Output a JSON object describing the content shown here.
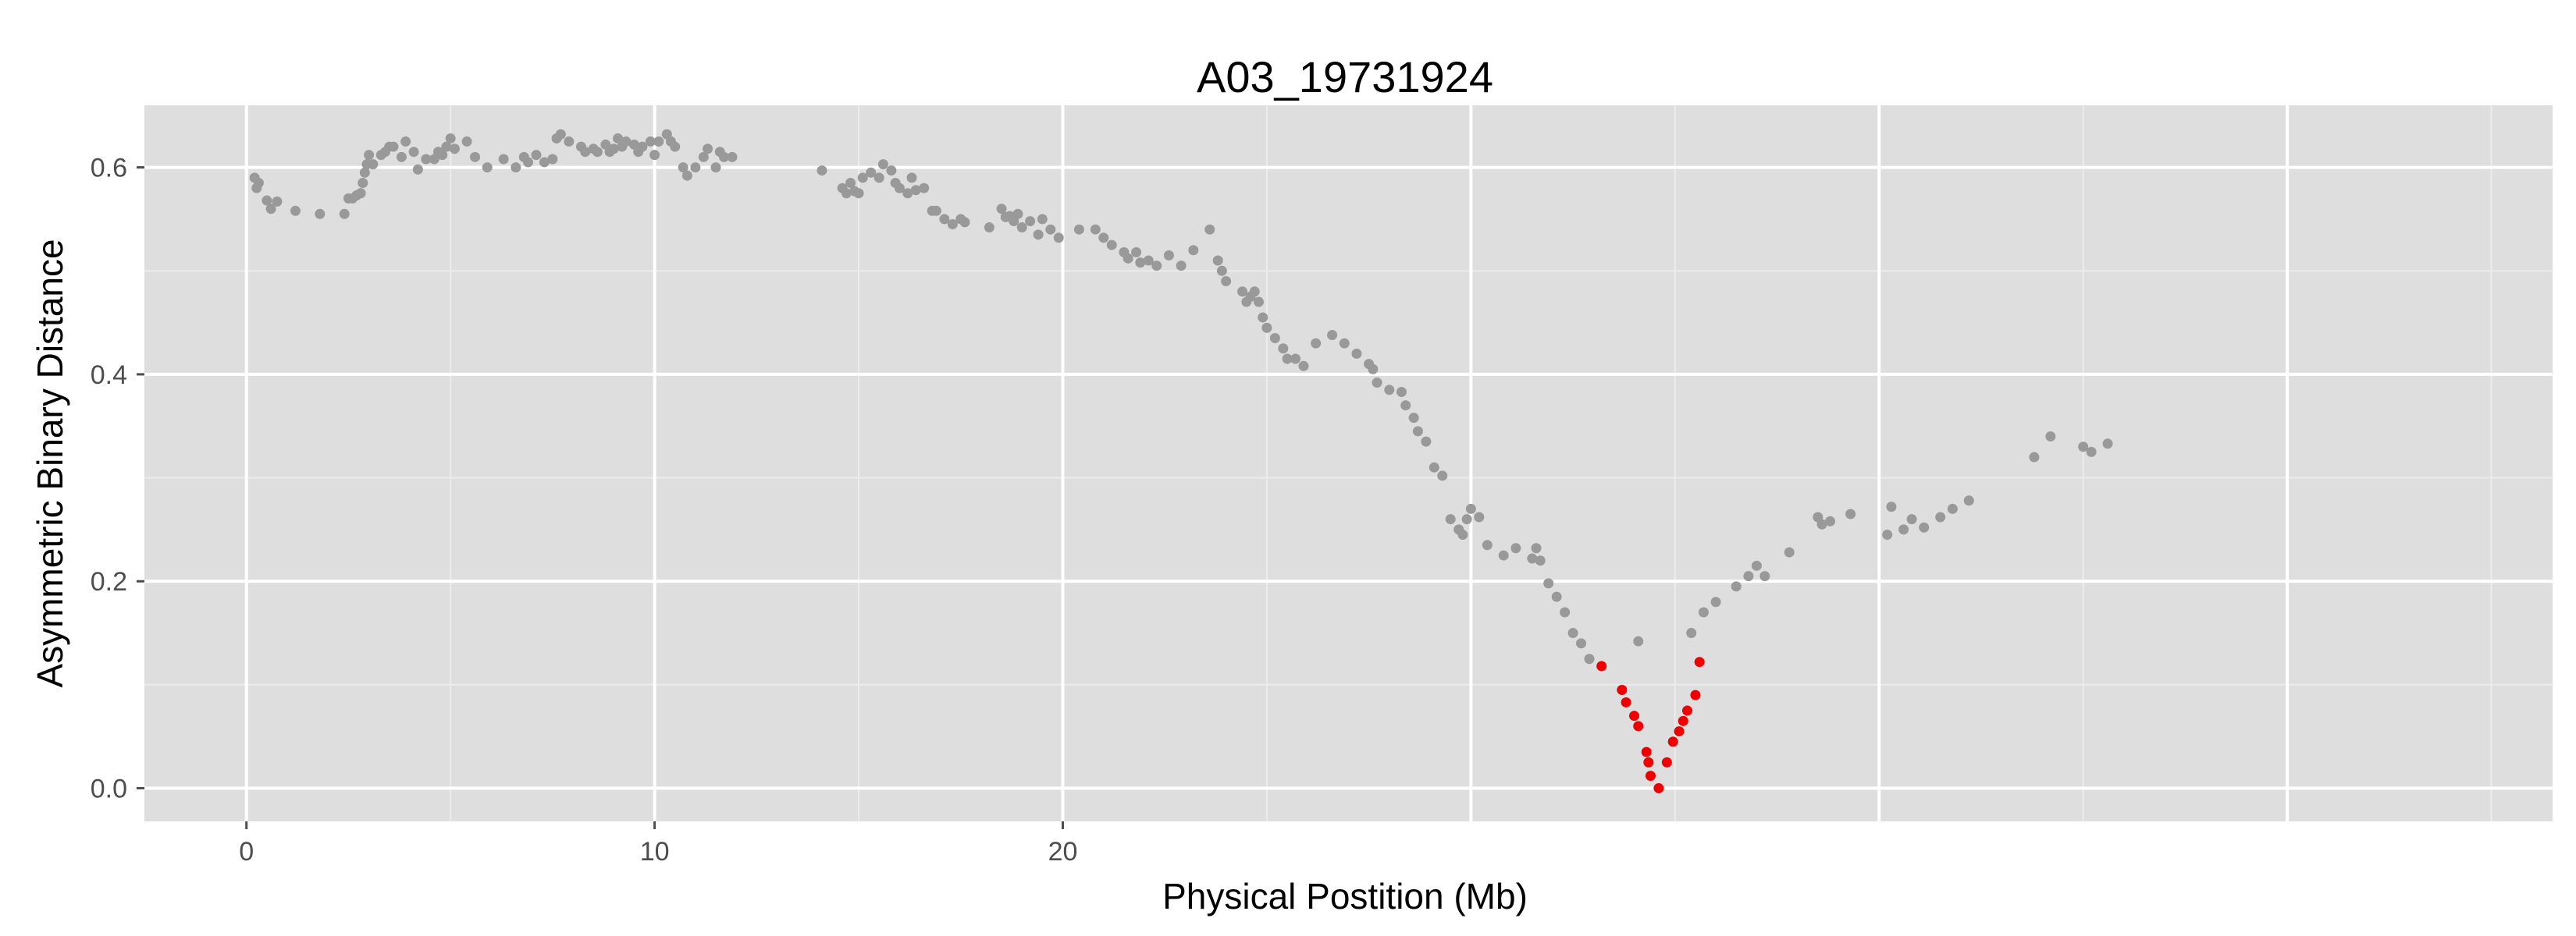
{
  "chart_data": {
    "type": "scatter",
    "title": "A03_19731924",
    "xlabel": "Physical Postition (Mb)",
    "ylabel": "Asymmetric Binary Distance",
    "xlim": [
      -2.5,
      56.5
    ],
    "ylim": [
      -0.032,
      0.66
    ],
    "x_ticks": [
      0,
      10,
      20
    ],
    "y_ticks": [
      0.0,
      0.2,
      0.4,
      0.6
    ],
    "y_tick_labels": [
      "0.0",
      "0.2",
      "0.4",
      "0.6"
    ],
    "grid": true,
    "colors": {
      "panel": "#dedede",
      "grid_major": "#ffffff",
      "grid_minor": "#ececec",
      "default_point": "#999999",
      "highlight_point": "#ee0000"
    },
    "series": [
      {
        "name": "markers",
        "color": "#999999",
        "points": [
          [
            0.2,
            0.59
          ],
          [
            0.25,
            0.58
          ],
          [
            0.3,
            0.585
          ],
          [
            0.5,
            0.568
          ],
          [
            0.6,
            0.56
          ],
          [
            0.75,
            0.567
          ],
          [
            1.2,
            0.558
          ],
          [
            1.8,
            0.555
          ],
          [
            2.4,
            0.555
          ],
          [
            2.5,
            0.57
          ],
          [
            2.6,
            0.57
          ],
          [
            2.7,
            0.573
          ],
          [
            2.8,
            0.575
          ],
          [
            2.85,
            0.585
          ],
          [
            2.9,
            0.595
          ],
          [
            2.95,
            0.603
          ],
          [
            3.0,
            0.612
          ],
          [
            3.1,
            0.603
          ],
          [
            3.3,
            0.612
          ],
          [
            3.4,
            0.615
          ],
          [
            3.5,
            0.62
          ],
          [
            3.6,
            0.62
          ],
          [
            3.8,
            0.61
          ],
          [
            3.9,
            0.625
          ],
          [
            4.1,
            0.615
          ],
          [
            4.2,
            0.598
          ],
          [
            4.4,
            0.608
          ],
          [
            4.6,
            0.608
          ],
          [
            4.7,
            0.615
          ],
          [
            4.8,
            0.612
          ],
          [
            4.9,
            0.62
          ],
          [
            5.0,
            0.628
          ],
          [
            5.1,
            0.618
          ],
          [
            5.4,
            0.625
          ],
          [
            5.6,
            0.61
          ],
          [
            5.9,
            0.6
          ],
          [
            6.3,
            0.608
          ],
          [
            6.6,
            0.6
          ],
          [
            6.8,
            0.61
          ],
          [
            6.9,
            0.605
          ],
          [
            7.1,
            0.612
          ],
          [
            7.3,
            0.605
          ],
          [
            7.5,
            0.608
          ],
          [
            7.6,
            0.628
          ],
          [
            7.7,
            0.632
          ],
          [
            7.9,
            0.625
          ],
          [
            8.2,
            0.62
          ],
          [
            8.3,
            0.615
          ],
          [
            8.5,
            0.618
          ],
          [
            8.6,
            0.615
          ],
          [
            8.8,
            0.622
          ],
          [
            8.9,
            0.615
          ],
          [
            9.0,
            0.618
          ],
          [
            9.1,
            0.628
          ],
          [
            9.2,
            0.62
          ],
          [
            9.3,
            0.625
          ],
          [
            9.5,
            0.622
          ],
          [
            9.6,
            0.615
          ],
          [
            9.7,
            0.62
          ],
          [
            9.9,
            0.625
          ],
          [
            10.0,
            0.612
          ],
          [
            10.1,
            0.625
          ],
          [
            10.3,
            0.632
          ],
          [
            10.4,
            0.625
          ],
          [
            10.5,
            0.62
          ],
          [
            10.7,
            0.6
          ],
          [
            10.8,
            0.592
          ],
          [
            11.0,
            0.6
          ],
          [
            11.2,
            0.61
          ],
          [
            11.3,
            0.618
          ],
          [
            11.5,
            0.6
          ],
          [
            11.6,
            0.615
          ],
          [
            11.7,
            0.61
          ],
          [
            11.9,
            0.61
          ],
          [
            14.1,
            0.597
          ],
          [
            14.6,
            0.58
          ],
          [
            14.7,
            0.575
          ],
          [
            14.8,
            0.585
          ],
          [
            14.9,
            0.577
          ],
          [
            15.0,
            0.575
          ],
          [
            15.1,
            0.59
          ],
          [
            15.3,
            0.595
          ],
          [
            15.5,
            0.59
          ],
          [
            15.6,
            0.603
          ],
          [
            15.8,
            0.597
          ],
          [
            15.9,
            0.585
          ],
          [
            16.0,
            0.58
          ],
          [
            16.2,
            0.575
          ],
          [
            16.3,
            0.59
          ],
          [
            16.4,
            0.578
          ],
          [
            16.6,
            0.58
          ],
          [
            16.8,
            0.558
          ],
          [
            16.9,
            0.558
          ],
          [
            17.1,
            0.55
          ],
          [
            17.3,
            0.545
          ],
          [
            17.5,
            0.55
          ],
          [
            17.6,
            0.547
          ],
          [
            18.2,
            0.542
          ],
          [
            18.5,
            0.56
          ],
          [
            18.6,
            0.552
          ],
          [
            18.7,
            0.553
          ],
          [
            18.8,
            0.548
          ],
          [
            18.9,
            0.555
          ],
          [
            19.0,
            0.542
          ],
          [
            19.2,
            0.548
          ],
          [
            19.4,
            0.535
          ],
          [
            19.5,
            0.55
          ],
          [
            19.7,
            0.54
          ],
          [
            19.9,
            0.532
          ],
          [
            20.4,
            0.54
          ],
          [
            20.8,
            0.54
          ],
          [
            21.0,
            0.532
          ],
          [
            21.2,
            0.525
          ],
          [
            21.5,
            0.518
          ],
          [
            21.6,
            0.512
          ],
          [
            21.8,
            0.518
          ],
          [
            21.9,
            0.508
          ],
          [
            22.1,
            0.51
          ],
          [
            22.3,
            0.505
          ],
          [
            22.6,
            0.515
          ],
          [
            22.9,
            0.505
          ],
          [
            23.2,
            0.52
          ],
          [
            23.6,
            0.54
          ],
          [
            23.8,
            0.51
          ],
          [
            23.9,
            0.5
          ],
          [
            24.0,
            0.49
          ],
          [
            24.4,
            0.48
          ],
          [
            24.5,
            0.47
          ],
          [
            24.6,
            0.475
          ],
          [
            24.7,
            0.48
          ],
          [
            24.8,
            0.47
          ],
          [
            24.9,
            0.455
          ],
          [
            25.0,
            0.445
          ],
          [
            25.2,
            0.435
          ],
          [
            25.4,
            0.425
          ],
          [
            25.5,
            0.415
          ],
          [
            25.7,
            0.415
          ],
          [
            25.9,
            0.408
          ],
          [
            26.2,
            0.43
          ],
          [
            26.6,
            0.438
          ],
          [
            26.9,
            0.43
          ],
          [
            27.2,
            0.42
          ],
          [
            27.5,
            0.41
          ],
          [
            27.6,
            0.405
          ],
          [
            27.7,
            0.392
          ],
          [
            28.0,
            0.385
          ],
          [
            28.3,
            0.383
          ],
          [
            28.4,
            0.37
          ],
          [
            28.6,
            0.358
          ],
          [
            28.7,
            0.345
          ],
          [
            28.9,
            0.335
          ],
          [
            29.1,
            0.31
          ],
          [
            29.3,
            0.302
          ],
          [
            29.5,
            0.26
          ],
          [
            29.7,
            0.25
          ],
          [
            29.8,
            0.245
          ],
          [
            29.9,
            0.26
          ],
          [
            30.0,
            0.27
          ],
          [
            30.2,
            0.262
          ],
          [
            30.4,
            0.235
          ],
          [
            30.8,
            0.225
          ],
          [
            31.1,
            0.232
          ],
          [
            31.5,
            0.222
          ],
          [
            31.6,
            0.232
          ],
          [
            31.7,
            0.22
          ],
          [
            31.9,
            0.198
          ],
          [
            32.1,
            0.185
          ],
          [
            32.3,
            0.17
          ],
          [
            32.5,
            0.15
          ],
          [
            32.7,
            0.14
          ],
          [
            32.9,
            0.125
          ],
          [
            34.1,
            0.142
          ],
          [
            35.4,
            0.15
          ],
          [
            35.7,
            0.17
          ],
          [
            36.0,
            0.18
          ],
          [
            36.5,
            0.195
          ],
          [
            36.8,
            0.205
          ],
          [
            37.0,
            0.215
          ],
          [
            37.2,
            0.205
          ],
          [
            37.8,
            0.228
          ],
          [
            38.5,
            0.262
          ],
          [
            38.6,
            0.255
          ],
          [
            38.8,
            0.258
          ],
          [
            39.3,
            0.265
          ],
          [
            40.2,
            0.245
          ],
          [
            40.3,
            0.272
          ],
          [
            40.6,
            0.25
          ],
          [
            40.8,
            0.26
          ],
          [
            41.1,
            0.252
          ],
          [
            41.5,
            0.262
          ],
          [
            41.8,
            0.27
          ],
          [
            42.2,
            0.278
          ],
          [
            43.8,
            0.32
          ],
          [
            44.2,
            0.34
          ],
          [
            45.0,
            0.33
          ],
          [
            45.2,
            0.325
          ],
          [
            45.6,
            0.333
          ]
        ]
      },
      {
        "name": "highlighted",
        "color": "#ee0000",
        "points": [
          [
            33.2,
            0.118
          ],
          [
            33.7,
            0.095
          ],
          [
            33.8,
            0.083
          ],
          [
            34.0,
            0.07
          ],
          [
            34.1,
            0.06
          ],
          [
            34.3,
            0.035
          ],
          [
            34.35,
            0.025
          ],
          [
            34.4,
            0.012
          ],
          [
            34.6,
            0.0
          ],
          [
            34.8,
            0.025
          ],
          [
            34.95,
            0.045
          ],
          [
            35.1,
            0.055
          ],
          [
            35.2,
            0.065
          ],
          [
            35.3,
            0.075
          ],
          [
            35.5,
            0.09
          ],
          [
            35.6,
            0.122
          ]
        ]
      }
    ]
  }
}
